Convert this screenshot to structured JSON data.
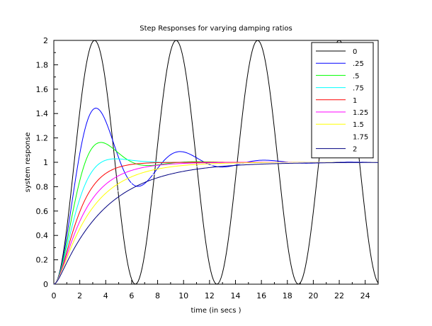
{
  "chart_data": {
    "type": "line",
    "title": "Step Responses for varying damping ratios",
    "xlabel": "time (in secs )",
    "ylabel": "system response",
    "xlim": [
      0,
      25
    ],
    "ylim": [
      0,
      2
    ],
    "x_ticks": [
      "0",
      "2",
      "4",
      "6",
      "8",
      "10",
      "12",
      "14",
      "16",
      "18",
      "20",
      "22",
      "24"
    ],
    "y_ticks": [
      "0",
      "0.2",
      "0.4",
      "0.6",
      "0.8",
      "1",
      "1.2",
      "1.4",
      "1.6",
      "1.8",
      "2"
    ],
    "grid": false,
    "legend_position": "top-right",
    "natural_frequency": 1,
    "x_step": 0.1,
    "series": [
      {
        "name": "0",
        "zeta": 0,
        "color": "#000000"
      },
      {
        "name": ".25",
        "zeta": 0.25,
        "color": "#0000ff"
      },
      {
        "name": ".5",
        "zeta": 0.5,
        "color": "#00ff00"
      },
      {
        "name": ".75",
        "zeta": 0.75,
        "color": "#00ffff"
      },
      {
        "name": "1",
        "zeta": 1,
        "color": "#ff0000"
      },
      {
        "name": "1.25",
        "zeta": 1.25,
        "color": "#ff00ff"
      },
      {
        "name": "1.5",
        "zeta": 1.5,
        "color": "#ffff00"
      },
      {
        "name": "1.75",
        "zeta": 1.75,
        "color": "#ffffff"
      },
      {
        "name": "2",
        "zeta": 2,
        "color": "#000080"
      }
    ]
  }
}
